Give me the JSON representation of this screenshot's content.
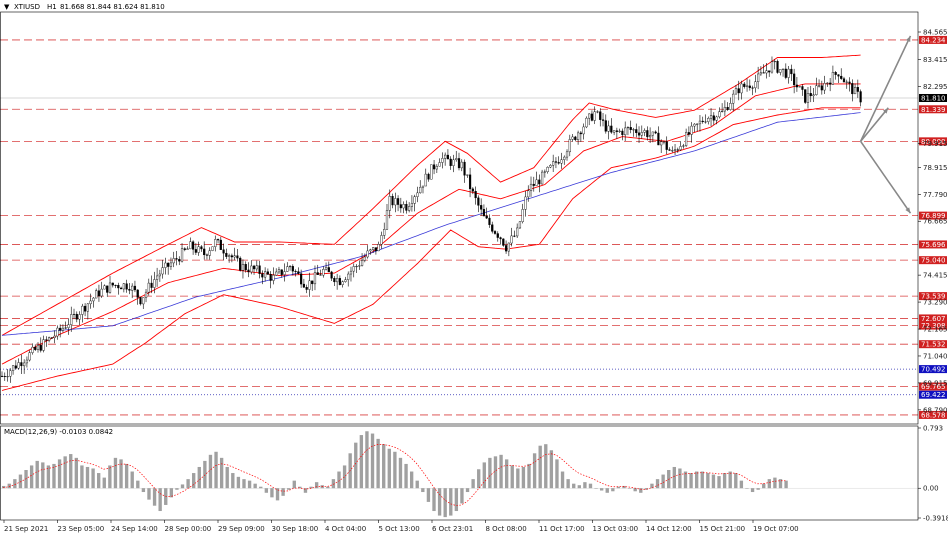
{
  "header": {
    "symbol": "XTIUSD",
    "timeframe": "H1",
    "ohlc": "81.668 81.844 81.624 81.810",
    "macd_label": "MACD(12,26,9) -0.0103 0.0842"
  },
  "colors": {
    "background": "#ffffff",
    "candle": "#000000",
    "bollinger": "#ff0000",
    "moving_average": "#3a3ad8",
    "level_line": "#d84040",
    "dotted_level": "#2a2ab0",
    "current_price_bg": "#000000",
    "level_label_bg": "#d02020",
    "blue_label_bg": "#1010c0",
    "arrow": "#888888",
    "macd_hist": "#a0a0a0",
    "macd_signal": "#ff0000"
  },
  "chart_data": [
    {
      "type": "candlestick",
      "title": "",
      "ylim": [
        68.2,
        85.4
      ],
      "y_ticks": [
        "84.565",
        "83.415",
        "82.295",
        "79.915",
        "78.915",
        "77.790",
        "76.665",
        "74.415",
        "73.290",
        "72.165",
        "71.040",
        "69.915",
        "68.790"
      ],
      "x_ticks": [
        "21 Sep 2021",
        "23 Sep 05:00",
        "24 Sep 14:00",
        "28 Sep 00:00",
        "29 Sep 09:00",
        "30 Sep 18:00",
        "4 Oct 04:00",
        "5 Oct 13:00",
        "6 Oct 23:01",
        "8 Oct 08:00",
        "11 Oct 17:00",
        "13 Oct 03:00",
        "14 Oct 12:00",
        "15 Oct 21:00",
        "19 Oct 07:00"
      ],
      "current_price": "81.810",
      "horizontal_levels": [
        {
          "value": 84.234,
          "label": "84.234",
          "style": "dash"
        },
        {
          "value": 81.339,
          "label": "81.339",
          "style": "dash"
        },
        {
          "value": 80.0,
          "label": "80.000",
          "style": "dash"
        },
        {
          "value": 76.899,
          "label": "76.899",
          "style": "dash"
        },
        {
          "value": 75.696,
          "label": "75.696",
          "style": "dash"
        },
        {
          "value": 75.04,
          "label": "75.040",
          "style": "dash"
        },
        {
          "value": 73.539,
          "label": "73.539",
          "style": "dash"
        },
        {
          "value": 72.607,
          "label": "72.607",
          "style": "dash"
        },
        {
          "value": 72.308,
          "label": "72.308",
          "style": "dash"
        },
        {
          "value": 71.532,
          "label": "71.532",
          "style": "dash"
        },
        {
          "value": 70.492,
          "label": "70.492",
          "style": "dot"
        },
        {
          "value": 69.765,
          "label": "69.765",
          "style": "dash"
        },
        {
          "value": 69.422,
          "label": "69.422",
          "style": "dot"
        },
        {
          "value": 68.578,
          "label": "68.578",
          "style": "dash"
        }
      ],
      "price_path": [
        [
          0,
          70.2
        ],
        [
          10,
          71.1
        ],
        [
          20,
          72.0
        ],
        [
          28,
          72.9
        ],
        [
          35,
          73.7
        ],
        [
          40,
          74.0
        ],
        [
          46,
          74.0
        ],
        [
          50,
          73.4
        ],
        [
          56,
          74.4
        ],
        [
          62,
          75.0
        ],
        [
          68,
          75.6
        ],
        [
          73,
          75.3
        ],
        [
          77,
          75.8
        ],
        [
          82,
          75.3
        ],
        [
          86,
          74.8
        ],
        [
          92,
          74.6
        ],
        [
          98,
          74.3
        ],
        [
          104,
          74.8
        ],
        [
          110,
          74.0
        ],
        [
          116,
          74.6
        ],
        [
          122,
          74.2
        ],
        [
          128,
          74.8
        ],
        [
          132,
          75.3
        ],
        [
          136,
          75.6
        ],
        [
          140,
          77.5
        ],
        [
          146,
          77.3
        ],
        [
          152,
          78.3
        ],
        [
          158,
          79.3
        ],
        [
          166,
          79.0
        ],
        [
          170,
          77.8
        ],
        [
          174,
          76.8
        ],
        [
          180,
          76.0
        ],
        [
          182,
          75.6
        ],
        [
          186,
          76.2
        ],
        [
          190,
          78.0
        ],
        [
          196,
          78.6
        ],
        [
          202,
          79.4
        ],
        [
          208,
          80.4
        ],
        [
          214,
          81.2
        ],
        [
          220,
          80.3
        ],
        [
          226,
          80.5
        ],
        [
          232,
          80.4
        ],
        [
          238,
          80.0
        ],
        [
          242,
          79.5
        ],
        [
          248,
          80.3
        ],
        [
          254,
          81.0
        ],
        [
          260,
          81.2
        ],
        [
          266,
          82.2
        ],
        [
          272,
          82.5
        ],
        [
          278,
          83.2
        ],
        [
          284,
          82.8
        ],
        [
          290,
          81.8
        ],
        [
          296,
          82.3
        ],
        [
          302,
          82.9
        ],
        [
          305,
          82.4
        ],
        [
          310,
          81.8
        ]
      ],
      "moving_average_path": [
        [
          0,
          71.9
        ],
        [
          40,
          72.3
        ],
        [
          70,
          73.5
        ],
        [
          100,
          74.3
        ],
        [
          130,
          75.2
        ],
        [
          160,
          76.5
        ],
        [
          190,
          77.6
        ],
        [
          220,
          78.7
        ],
        [
          250,
          79.6
        ],
        [
          280,
          80.8
        ],
        [
          310,
          81.2
        ]
      ],
      "bollinger_upper_path": [
        [
          0,
          71.9
        ],
        [
          20,
          73.2
        ],
        [
          40,
          74.5
        ],
        [
          60,
          75.7
        ],
        [
          72,
          76.4
        ],
        [
          84,
          75.8
        ],
        [
          100,
          75.8
        ],
        [
          120,
          75.7
        ],
        [
          134,
          77.2
        ],
        [
          150,
          79.0
        ],
        [
          160,
          80.0
        ],
        [
          168,
          79.5
        ],
        [
          180,
          78.3
        ],
        [
          192,
          78.9
        ],
        [
          206,
          80.9
        ],
        [
          212,
          81.6
        ],
        [
          222,
          81.3
        ],
        [
          236,
          81.0
        ],
        [
          250,
          81.3
        ],
        [
          266,
          82.4
        ],
        [
          280,
          83.5
        ],
        [
          296,
          83.5
        ],
        [
          310,
          83.6
        ]
      ],
      "bollinger_middle_path": [
        [
          0,
          70.7
        ],
        [
          20,
          71.9
        ],
        [
          40,
          72.9
        ],
        [
          60,
          74.1
        ],
        [
          80,
          74.7
        ],
        [
          100,
          74.4
        ],
        [
          120,
          74.5
        ],
        [
          134,
          75.4
        ],
        [
          150,
          77.0
        ],
        [
          165,
          78.0
        ],
        [
          180,
          77.6
        ],
        [
          196,
          78.2
        ],
        [
          210,
          79.6
        ],
        [
          224,
          80.2
        ],
        [
          240,
          80.0
        ],
        [
          256,
          80.6
        ],
        [
          272,
          81.9
        ],
        [
          290,
          82.4
        ],
        [
          310,
          82.4
        ]
      ],
      "bollinger_lower_path": [
        [
          0,
          69.6
        ],
        [
          20,
          70.2
        ],
        [
          40,
          70.7
        ],
        [
          52,
          71.6
        ],
        [
          66,
          72.8
        ],
        [
          80,
          73.6
        ],
        [
          100,
          73.1
        ],
        [
          120,
          72.4
        ],
        [
          134,
          73.2
        ],
        [
          150,
          74.9
        ],
        [
          162,
          76.3
        ],
        [
          172,
          75.6
        ],
        [
          182,
          75.5
        ],
        [
          194,
          75.7
        ],
        [
          206,
          77.6
        ],
        [
          220,
          78.9
        ],
        [
          236,
          79.3
        ],
        [
          250,
          79.8
        ],
        [
          264,
          80.7
        ],
        [
          280,
          81.1
        ],
        [
          296,
          81.4
        ],
        [
          310,
          81.4
        ]
      ],
      "arrows": [
        {
          "from": [
            310,
            80.0
          ],
          "to": [
            328,
            84.4
          ]
        },
        {
          "from": [
            310,
            80.0
          ],
          "to": [
            320,
            81.4
          ]
        },
        {
          "from": [
            310,
            80.0
          ],
          "to": [
            328,
            77.0
          ]
        }
      ]
    },
    {
      "type": "bar",
      "title": "MACD(12,26,9)",
      "ylim": [
        -0.3918,
        0.793
      ],
      "y_ticks": [
        "0.793",
        "0.00",
        "-0.3918"
      ],
      "series": [
        {
          "name": "",
          "values": [
            0.03,
            0.06,
            0.12,
            0.18,
            0.24,
            0.3,
            0.36,
            0.34,
            0.3,
            0.32,
            0.38,
            0.42,
            0.45,
            0.4,
            0.3,
            0.28,
            0.26,
            0.2,
            0.14,
            0.3,
            0.4,
            0.38,
            0.32,
            0.22,
            0.1,
            -0.05,
            -0.15,
            -0.23,
            -0.3,
            -0.22,
            -0.12,
            -0.02,
            0.05,
            0.12,
            0.2,
            0.28,
            0.36,
            0.44,
            0.48,
            0.4,
            0.28,
            0.2,
            0.15,
            0.12,
            0.1,
            0.06,
            0.02,
            -0.06,
            -0.12,
            -0.16,
            -0.1,
            -0.02,
            0.1,
            0.02,
            -0.06,
            0.02,
            0.08,
            0.04,
            0.02,
            0.12,
            0.22,
            0.3,
            0.46,
            0.6,
            0.7,
            0.75,
            0.72,
            0.65,
            0.58,
            0.52,
            0.48,
            0.4,
            0.32,
            0.22,
            0.1,
            -0.05,
            -0.18,
            -0.3,
            -0.36,
            -0.38,
            -0.36,
            -0.3,
            -0.2,
            -0.05,
            0.12,
            0.25,
            0.34,
            0.4,
            0.42,
            0.44,
            0.38,
            0.3,
            0.26,
            0.28,
            0.32,
            0.46,
            0.56,
            0.58,
            0.5,
            0.38,
            0.22,
            0.12,
            0.06,
            0.04,
            0.08,
            0.06,
            0.0,
            -0.03,
            -0.06,
            -0.04,
            0.02,
            0.03,
            0.0,
            -0.04,
            -0.06,
            -0.02,
            0.06,
            0.12,
            0.18,
            0.24,
            0.28,
            0.26,
            0.22,
            0.2,
            0.22,
            0.22,
            0.2,
            0.18,
            0.16,
            0.2,
            0.22,
            0.2,
            0.1,
            0.0,
            -0.05,
            -0.02,
            0.06,
            0.12,
            0.14,
            0.12,
            0.1
          ]
        }
      ]
    }
  ]
}
